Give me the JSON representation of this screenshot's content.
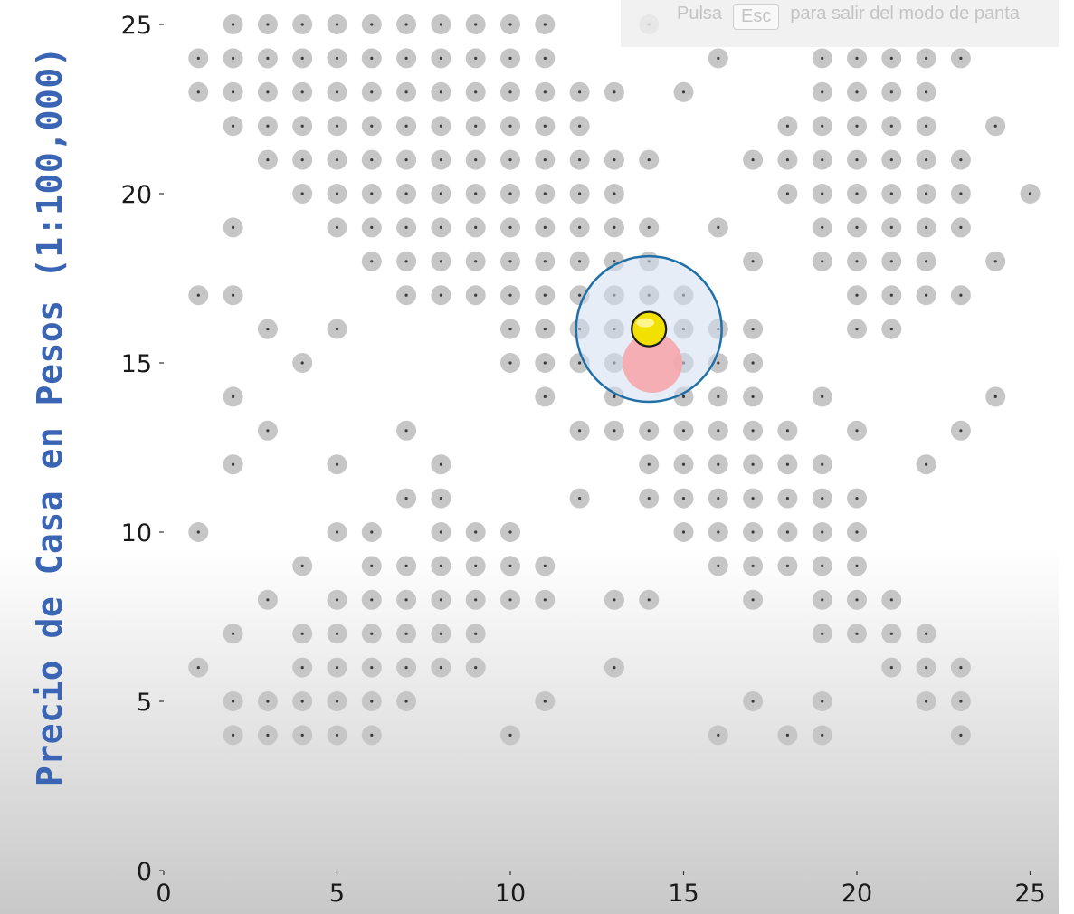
{
  "window": {
    "esc_hint": {
      "pre": "Pulsa",
      "key": "Esc",
      "post": "para salir del modo de panta"
    }
  },
  "colors": {
    "background_top": "#ffffff",
    "background_bottom": "#c8c8c8",
    "point_halo": "#c6c6c6",
    "point_center": "#3a3a3a",
    "circle_stroke": "#1f6fa8",
    "circle_fill": "#d4def0",
    "target_fill": "#f7a3a8",
    "query_fill": "#f2e100",
    "ylabel": "#3a64b4"
  },
  "chart_data": {
    "type": "scatter",
    "title": "",
    "xlabel": "",
    "ylabel": "Precio de Casa en Pesos (1:100,000)",
    "xlim": [
      0,
      26
    ],
    "ylim": [
      0,
      25.9
    ],
    "grid": false,
    "xticks": [
      0,
      5,
      10,
      15,
      20,
      25
    ],
    "yticks": [
      0,
      5,
      10,
      15,
      20,
      25
    ],
    "series": [
      {
        "name": "data points",
        "points": [
          [
            2,
            25
          ],
          [
            3,
            25
          ],
          [
            4,
            25
          ],
          [
            5,
            25
          ],
          [
            6,
            25
          ],
          [
            7,
            25
          ],
          [
            8,
            25
          ],
          [
            9,
            25
          ],
          [
            10,
            25
          ],
          [
            11,
            25
          ],
          [
            14,
            25
          ],
          [
            1,
            24
          ],
          [
            2,
            24
          ],
          [
            3,
            24
          ],
          [
            4,
            24
          ],
          [
            5,
            24
          ],
          [
            6,
            24
          ],
          [
            7,
            24
          ],
          [
            8,
            24
          ],
          [
            9,
            24
          ],
          [
            10,
            24
          ],
          [
            11,
            24
          ],
          [
            16,
            24
          ],
          [
            19,
            24
          ],
          [
            20,
            24
          ],
          [
            21,
            24
          ],
          [
            22,
            24
          ],
          [
            23,
            24
          ],
          [
            1,
            23
          ],
          [
            2,
            23
          ],
          [
            3,
            23
          ],
          [
            4,
            23
          ],
          [
            5,
            23
          ],
          [
            6,
            23
          ],
          [
            7,
            23
          ],
          [
            8,
            23
          ],
          [
            9,
            23
          ],
          [
            10,
            23
          ],
          [
            11,
            23
          ],
          [
            12,
            23
          ],
          [
            13,
            23
          ],
          [
            15,
            23
          ],
          [
            19,
            23
          ],
          [
            20,
            23
          ],
          [
            21,
            23
          ],
          [
            22,
            23
          ],
          [
            2,
            22
          ],
          [
            3,
            22
          ],
          [
            4,
            22
          ],
          [
            5,
            22
          ],
          [
            6,
            22
          ],
          [
            7,
            22
          ],
          [
            8,
            22
          ],
          [
            9,
            22
          ],
          [
            10,
            22
          ],
          [
            11,
            22
          ],
          [
            12,
            22
          ],
          [
            18,
            22
          ],
          [
            19,
            22
          ],
          [
            20,
            22
          ],
          [
            21,
            22
          ],
          [
            22,
            22
          ],
          [
            24,
            22
          ],
          [
            3,
            21
          ],
          [
            4,
            21
          ],
          [
            5,
            21
          ],
          [
            6,
            21
          ],
          [
            7,
            21
          ],
          [
            8,
            21
          ],
          [
            9,
            21
          ],
          [
            10,
            21
          ],
          [
            11,
            21
          ],
          [
            12,
            21
          ],
          [
            13,
            21
          ],
          [
            14,
            21
          ],
          [
            17,
            21
          ],
          [
            18,
            21
          ],
          [
            19,
            21
          ],
          [
            20,
            21
          ],
          [
            21,
            21
          ],
          [
            22,
            21
          ],
          [
            23,
            21
          ],
          [
            4,
            20
          ],
          [
            5,
            20
          ],
          [
            6,
            20
          ],
          [
            7,
            20
          ],
          [
            8,
            20
          ],
          [
            9,
            20
          ],
          [
            10,
            20
          ],
          [
            11,
            20
          ],
          [
            12,
            20
          ],
          [
            13,
            20
          ],
          [
            18,
            20
          ],
          [
            19,
            20
          ],
          [
            20,
            20
          ],
          [
            21,
            20
          ],
          [
            22,
            20
          ],
          [
            23,
            20
          ],
          [
            25,
            20
          ],
          [
            2,
            19
          ],
          [
            5,
            19
          ],
          [
            6,
            19
          ],
          [
            7,
            19
          ],
          [
            8,
            19
          ],
          [
            9,
            19
          ],
          [
            10,
            19
          ],
          [
            11,
            19
          ],
          [
            12,
            19
          ],
          [
            13,
            19
          ],
          [
            14,
            19
          ],
          [
            16,
            19
          ],
          [
            19,
            19
          ],
          [
            20,
            19
          ],
          [
            21,
            19
          ],
          [
            22,
            19
          ],
          [
            23,
            19
          ],
          [
            6,
            18
          ],
          [
            7,
            18
          ],
          [
            8,
            18
          ],
          [
            9,
            18
          ],
          [
            10,
            18
          ],
          [
            11,
            18
          ],
          [
            12,
            18
          ],
          [
            13,
            18
          ],
          [
            14,
            18
          ],
          [
            17,
            18
          ],
          [
            19,
            18
          ],
          [
            20,
            18
          ],
          [
            21,
            18
          ],
          [
            22,
            18
          ],
          [
            24,
            18
          ],
          [
            1,
            17
          ],
          [
            2,
            17
          ],
          [
            7,
            17
          ],
          [
            8,
            17
          ],
          [
            9,
            17
          ],
          [
            10,
            17
          ],
          [
            11,
            17
          ],
          [
            12,
            17
          ],
          [
            13,
            17
          ],
          [
            14,
            17
          ],
          [
            15,
            17
          ],
          [
            20,
            17
          ],
          [
            21,
            17
          ],
          [
            22,
            17
          ],
          [
            23,
            17
          ],
          [
            3,
            16
          ],
          [
            5,
            16
          ],
          [
            10,
            16
          ],
          [
            11,
            16
          ],
          [
            12,
            16
          ],
          [
            13,
            16
          ],
          [
            15,
            16
          ],
          [
            16,
            16
          ],
          [
            17,
            16
          ],
          [
            20,
            16
          ],
          [
            21,
            16
          ],
          [
            4,
            15
          ],
          [
            10,
            15
          ],
          [
            11,
            15
          ],
          [
            12,
            15
          ],
          [
            13,
            15
          ],
          [
            15,
            15
          ],
          [
            16,
            15
          ],
          [
            17,
            15
          ],
          [
            2,
            14
          ],
          [
            11,
            14
          ],
          [
            13,
            14
          ],
          [
            15,
            14
          ],
          [
            16,
            14
          ],
          [
            17,
            14
          ],
          [
            19,
            14
          ],
          [
            24,
            14
          ],
          [
            3,
            13
          ],
          [
            7,
            13
          ],
          [
            12,
            13
          ],
          [
            13,
            13
          ],
          [
            14,
            13
          ],
          [
            15,
            13
          ],
          [
            16,
            13
          ],
          [
            17,
            13
          ],
          [
            18,
            13
          ],
          [
            20,
            13
          ],
          [
            23,
            13
          ],
          [
            2,
            12
          ],
          [
            5,
            12
          ],
          [
            8,
            12
          ],
          [
            14,
            12
          ],
          [
            15,
            12
          ],
          [
            16,
            12
          ],
          [
            17,
            12
          ],
          [
            18,
            12
          ],
          [
            19,
            12
          ],
          [
            22,
            12
          ],
          [
            7,
            11
          ],
          [
            8,
            11
          ],
          [
            12,
            11
          ],
          [
            14,
            11
          ],
          [
            15,
            11
          ],
          [
            16,
            11
          ],
          [
            17,
            11
          ],
          [
            18,
            11
          ],
          [
            19,
            11
          ],
          [
            20,
            11
          ],
          [
            1,
            10
          ],
          [
            5,
            10
          ],
          [
            6,
            10
          ],
          [
            8,
            10
          ],
          [
            9,
            10
          ],
          [
            10,
            10
          ],
          [
            15,
            10
          ],
          [
            16,
            10
          ],
          [
            17,
            10
          ],
          [
            18,
            10
          ],
          [
            19,
            10
          ],
          [
            20,
            10
          ],
          [
            4,
            9
          ],
          [
            6,
            9
          ],
          [
            7,
            9
          ],
          [
            8,
            9
          ],
          [
            9,
            9
          ],
          [
            10,
            9
          ],
          [
            11,
            9
          ],
          [
            16,
            9
          ],
          [
            17,
            9
          ],
          [
            18,
            9
          ],
          [
            19,
            9
          ],
          [
            20,
            9
          ],
          [
            3,
            8
          ],
          [
            5,
            8
          ],
          [
            6,
            8
          ],
          [
            7,
            8
          ],
          [
            8,
            8
          ],
          [
            9,
            8
          ],
          [
            10,
            8
          ],
          [
            11,
            8
          ],
          [
            13,
            8
          ],
          [
            14,
            8
          ],
          [
            17,
            8
          ],
          [
            19,
            8
          ],
          [
            20,
            8
          ],
          [
            21,
            8
          ],
          [
            2,
            7
          ],
          [
            4,
            7
          ],
          [
            5,
            7
          ],
          [
            6,
            7
          ],
          [
            7,
            7
          ],
          [
            8,
            7
          ],
          [
            9,
            7
          ],
          [
            19,
            7
          ],
          [
            20,
            7
          ],
          [
            21,
            7
          ],
          [
            22,
            7
          ],
          [
            1,
            6
          ],
          [
            4,
            6
          ],
          [
            5,
            6
          ],
          [
            6,
            6
          ],
          [
            7,
            6
          ],
          [
            8,
            6
          ],
          [
            9,
            6
          ],
          [
            13,
            6
          ],
          [
            21,
            6
          ],
          [
            22,
            6
          ],
          [
            23,
            6
          ],
          [
            2,
            5
          ],
          [
            3,
            5
          ],
          [
            4,
            5
          ],
          [
            5,
            5
          ],
          [
            6,
            5
          ],
          [
            7,
            5
          ],
          [
            11,
            5
          ],
          [
            17,
            5
          ],
          [
            19,
            5
          ],
          [
            22,
            5
          ],
          [
            23,
            5
          ],
          [
            2,
            4
          ],
          [
            3,
            4
          ],
          [
            4,
            4
          ],
          [
            5,
            4
          ],
          [
            6,
            4
          ],
          [
            10,
            4
          ],
          [
            16,
            4
          ],
          [
            18,
            4
          ],
          [
            19,
            4
          ],
          [
            23,
            4
          ]
        ]
      }
    ],
    "highlight": {
      "query_point": [
        14,
        16
      ],
      "target_point": [
        14.1,
        15
      ],
      "neighborhood_circle": {
        "center": [
          14,
          16
        ],
        "radius": 2.1
      }
    }
  }
}
